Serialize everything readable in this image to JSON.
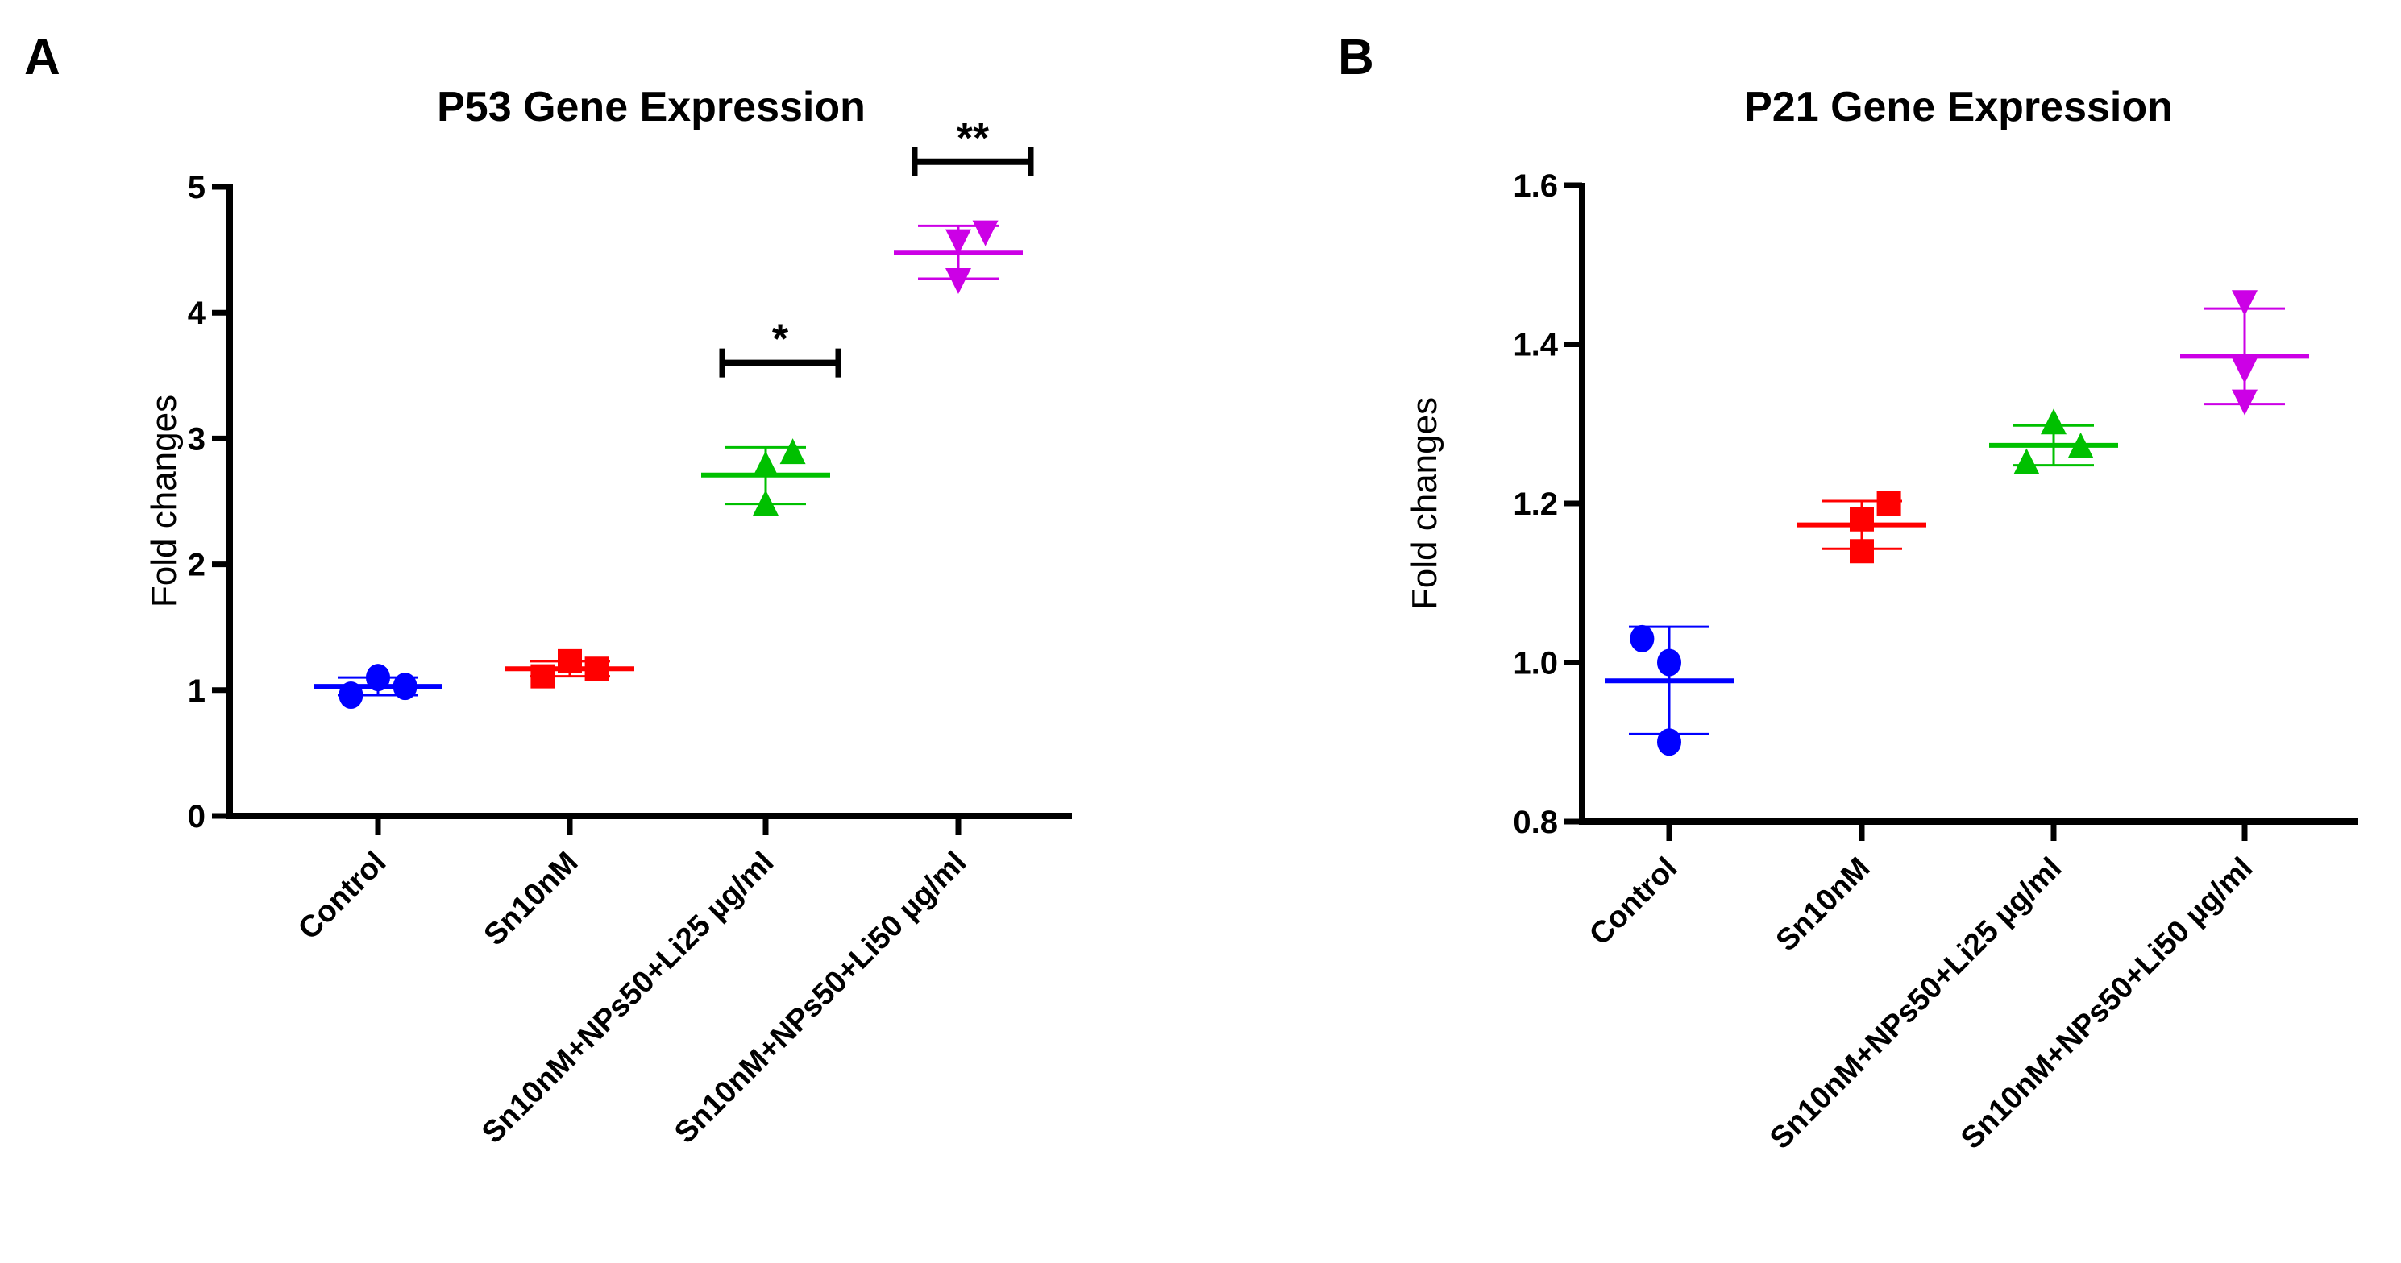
{
  "chart_data": [
    {
      "panel": "A",
      "type": "scatter",
      "title": "P53 Gene Expression",
      "xlabel": "",
      "ylabel": "Fold changes",
      "ylim": [
        0,
        5
      ],
      "yticks": [
        0,
        1,
        2,
        3,
        4,
        5
      ],
      "ytick_labels": [
        "0",
        "1",
        "2",
        "3",
        "4",
        "5"
      ],
      "grid": false,
      "categories": [
        "Control",
        "Sn10nM",
        "Sn10nM+NPs50+Li25 µg/ml",
        "Sn10nM+NPs50+Li50 µg/ml"
      ],
      "series": [
        {
          "name": "Control",
          "color": "#0000ff",
          "marker": "circle",
          "points": [
            0.96,
            1.1,
            1.03
          ],
          "jitter": [
            -0.28,
            0.0,
            0.28
          ],
          "mean": 1.03,
          "err_low": 0.96,
          "err_high": 1.1
        },
        {
          "name": "Sn10nM",
          "color": "#ff0000",
          "marker": "square",
          "points": [
            1.11,
            1.23,
            1.17
          ],
          "jitter": [
            -0.28,
            0.0,
            0.28
          ],
          "mean": 1.17,
          "err_low": 1.11,
          "err_high": 1.23
        },
        {
          "name": "Sn10nM+NPs50+Li25 µg/ml",
          "color": "#00c000",
          "marker": "triangle-up",
          "points": [
            2.78,
            2.47,
            2.88
          ],
          "jitter": [
            0.0,
            0.0,
            0.28
          ],
          "mean": 2.71,
          "err_low": 2.48,
          "err_high": 2.93
        },
        {
          "name": "Sn10nM+NPs50+Li50 µg/ml",
          "color": "#cc00e6",
          "marker": "triangle-down",
          "points": [
            4.58,
            4.27,
            4.65
          ],
          "jitter": [
            0.0,
            0.0,
            0.28
          ],
          "mean": 4.48,
          "err_low": 4.27,
          "err_high": 4.69
        }
      ],
      "annotations": [
        {
          "label": "*",
          "category": 2,
          "y": 3.6
        },
        {
          "label": "**",
          "category": 3,
          "y": 5.2
        }
      ]
    },
    {
      "panel": "B",
      "type": "scatter",
      "title": "P21 Gene Expression",
      "xlabel": "",
      "ylabel": "Fold changes",
      "ylim": [
        0.8,
        1.6
      ],
      "yticks": [
        0.8,
        1.0,
        1.2,
        1.4,
        1.6
      ],
      "ytick_labels": [
        "0.8",
        "1.0",
        "1.2",
        "1.4",
        "1.6"
      ],
      "grid": false,
      "categories": [
        "Control",
        "Sn10nM",
        "Sn10nM+NPs50+Li25 µg/ml",
        "Sn10nM+NPs50+Li50 µg/ml"
      ],
      "series": [
        {
          "name": "Control",
          "color": "#0000ff",
          "marker": "circle",
          "points": [
            1.03,
            1.0,
            0.9
          ],
          "jitter": [
            -0.28,
            0.0,
            0.0
          ],
          "mean": 0.977,
          "err_low": 0.91,
          "err_high": 1.045
        },
        {
          "name": "Sn10nM",
          "color": "#ff0000",
          "marker": "square",
          "points": [
            1.18,
            1.14,
            1.2
          ],
          "jitter": [
            0.0,
            0.0,
            0.28
          ],
          "mean": 1.173,
          "err_low": 1.143,
          "err_high": 1.203
        },
        {
          "name": "Sn10nM+NPs50+Li25 µg/ml",
          "color": "#00c000",
          "marker": "triangle-up",
          "points": [
            1.25,
            1.3,
            1.27
          ],
          "jitter": [
            -0.28,
            0.0,
            0.28
          ],
          "mean": 1.273,
          "err_low": 1.248,
          "err_high": 1.298
        },
        {
          "name": "Sn10nM+NPs50+Li50 µg/ml",
          "color": "#cc00e6",
          "marker": "triangle-down",
          "points": [
            1.455,
            1.37,
            1.33
          ],
          "jitter": [
            0.0,
            0.0,
            0.0
          ],
          "mean": 1.385,
          "err_low": 1.325,
          "err_high": 1.445
        }
      ],
      "annotations": []
    }
  ]
}
